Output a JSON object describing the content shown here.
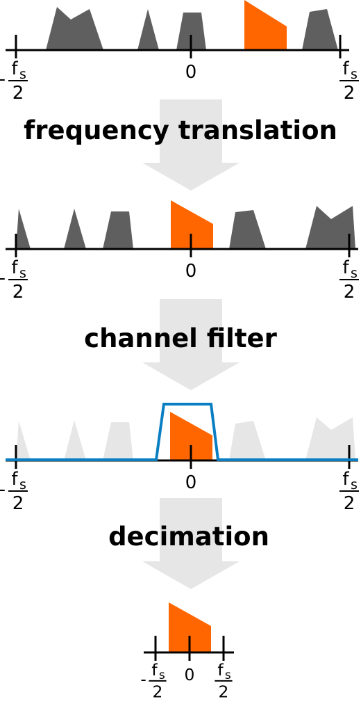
{
  "colors": {
    "signal": "#5f5f5f",
    "selected": "#ff6600",
    "faded": "#e6e6e6",
    "arrow": "#e6e6e6",
    "filter": "#0a7ec2",
    "axis": "#000000"
  },
  "labels": {
    "fs": "f",
    "fs_sub": "s",
    "two": "2",
    "minus": "-",
    "zero": "0"
  },
  "steps": [
    {
      "label": "frequency translation"
    },
    {
      "label": "channel filter"
    },
    {
      "label": "decimation"
    }
  ]
}
